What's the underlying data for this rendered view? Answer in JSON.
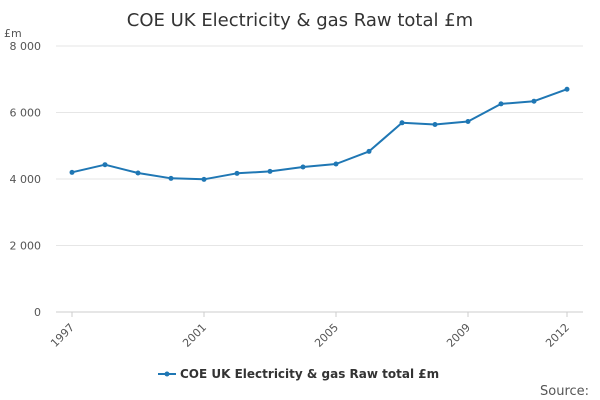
{
  "chart_data": {
    "type": "line",
    "title": "COE UK Electricity & gas Raw total £m",
    "ylabel": "£m",
    "xlabel": "",
    "x": [
      1997,
      1998,
      1999,
      2000,
      2001,
      2002,
      2003,
      2004,
      2005,
      2006,
      2007,
      2008,
      2009,
      2010,
      2011,
      2012
    ],
    "xticks": [
      "1997",
      "2001",
      "2005",
      "2009",
      "2012"
    ],
    "yticks": [
      "0",
      "2 000",
      "4 000",
      "6 000",
      "8 000"
    ],
    "ylim": [
      0,
      8000
    ],
    "grid": true,
    "series": [
      {
        "name": "COE UK Electricity & gas Raw total £m",
        "color": "#1f77b4",
        "values": [
          4200,
          4430,
          4180,
          4020,
          3990,
          4170,
          4230,
          4360,
          4450,
          4830,
          5690,
          5640,
          5730,
          6260,
          6340,
          6700
        ]
      }
    ],
    "legend_position": "bottom",
    "source_label": "Source:"
  }
}
